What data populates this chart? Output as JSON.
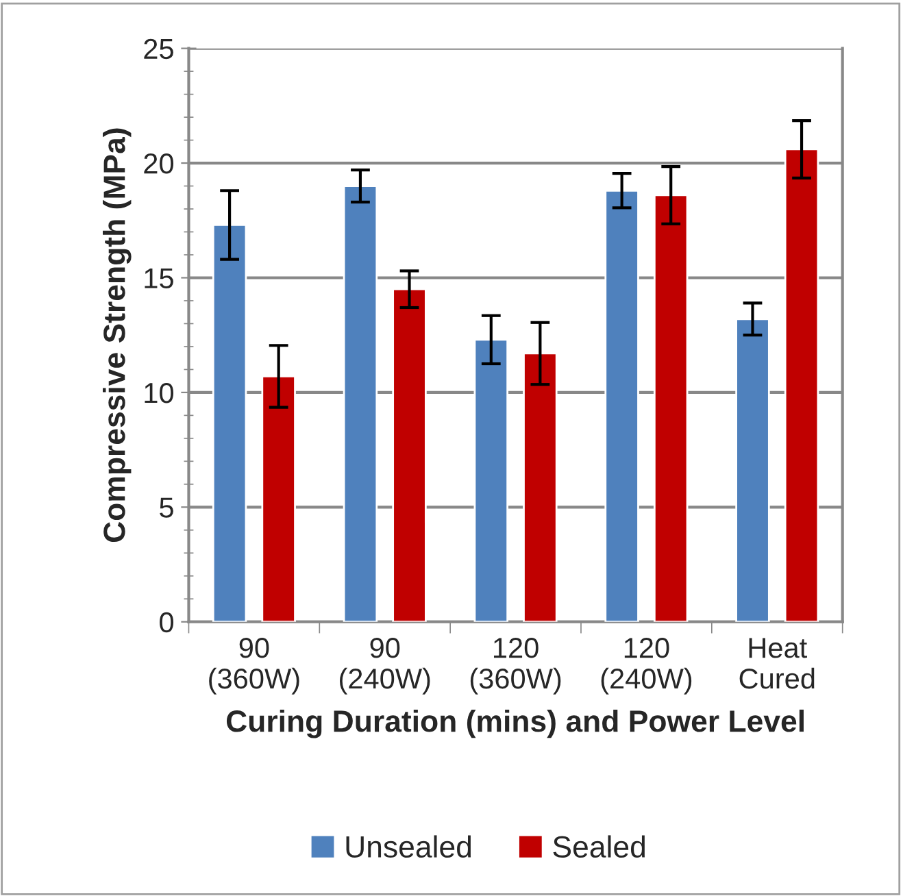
{
  "chart_data": {
    "type": "bar",
    "xlabel": "Curing Duration (mins) and Power Level",
    "ylabel": "Compressive Strength (MPa)",
    "categories": [
      "90\n(360W)",
      "90\n(240W)",
      "120\n(360W)",
      "120\n(240W)",
      "Heat\nCured"
    ],
    "series": [
      {
        "name": "Unsealed",
        "color": "#4f81bd",
        "values": [
          17.3,
          19.0,
          12.3,
          18.8,
          13.2
        ],
        "errors": [
          1.5,
          0.7,
          1.05,
          0.75,
          0.7
        ]
      },
      {
        "name": "Sealed",
        "color": "#c00000",
        "values": [
          10.7,
          14.5,
          11.7,
          18.6,
          20.6
        ],
        "errors": [
          1.35,
          0.8,
          1.35,
          1.25,
          1.25
        ]
      }
    ],
    "ylim": [
      0,
      25
    ],
    "yticks": [
      0,
      5,
      10,
      15,
      20,
      25
    ],
    "grid": "y",
    "legend": "bottom"
  }
}
